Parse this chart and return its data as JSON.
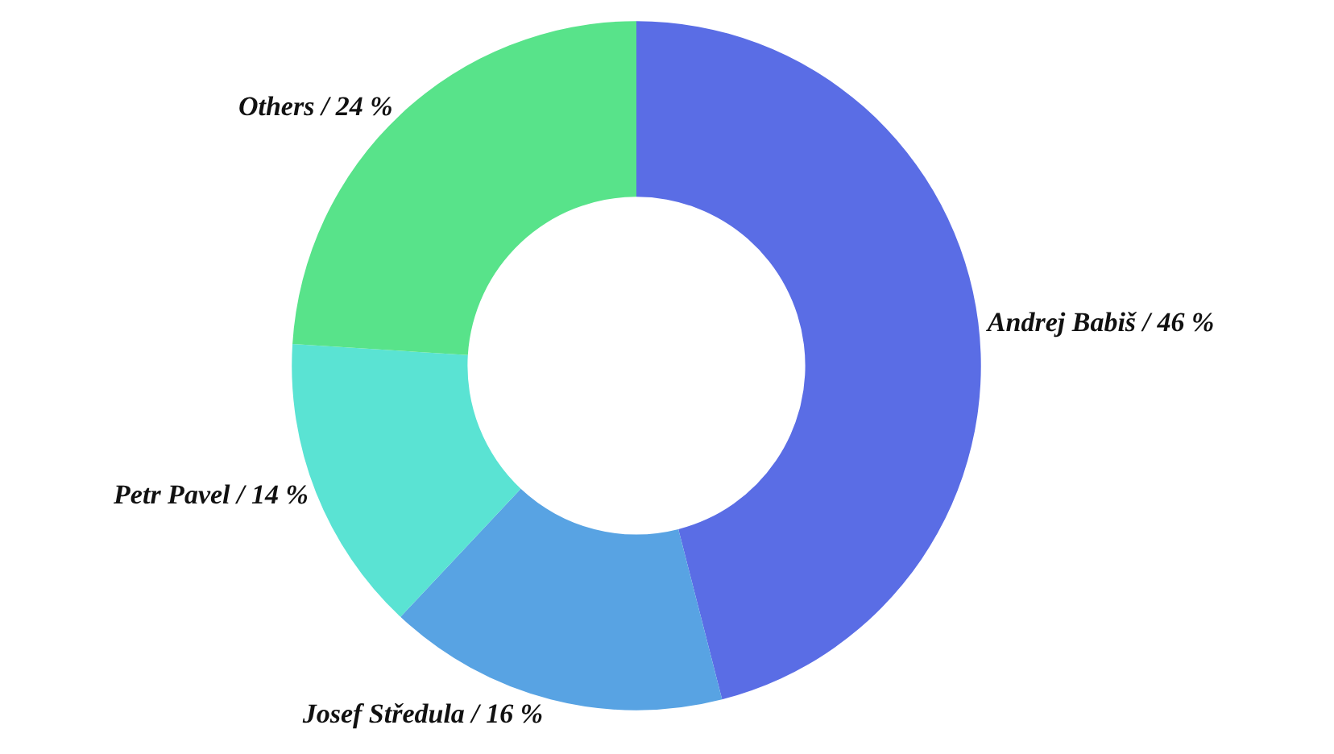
{
  "chart_data": {
    "type": "donut",
    "categories": [
      "Andrej Babiš",
      "Josef Středula",
      "Petr Pavel",
      "Others"
    ],
    "values": [
      46,
      16,
      14,
      24
    ],
    "colors": [
      "#5a6de5",
      "#58a3e3",
      "#5ae3d3",
      "#58e38a"
    ],
    "value_labels": [
      "/ 46 %",
      "/ 16 %",
      "/ 14 %",
      "/ 24 %"
    ],
    "legend": false
  }
}
